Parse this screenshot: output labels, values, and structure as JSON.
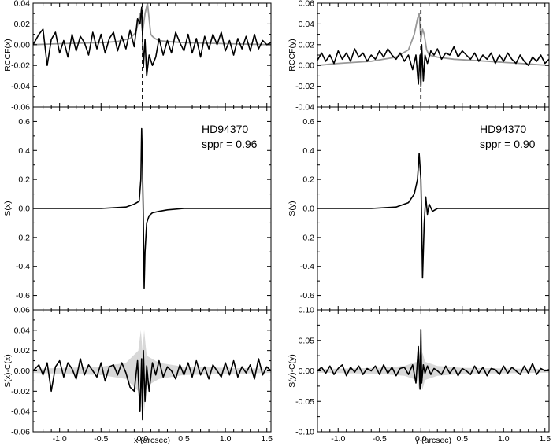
{
  "chart_data": [
    {
      "type": "line",
      "panel": "left-top",
      "ylabel": "RCCF(x)",
      "xlim": [
        -1.32,
        1.55
      ],
      "ylim": [
        -0.06,
        0.04
      ],
      "yticks": [
        "0.04",
        "0.02",
        "0.00",
        "-0.02",
        "-0.04",
        "-0.06"
      ],
      "ytick_values": [
        0.04,
        0.02,
        0.0,
        -0.02,
        -0.04,
        -0.06
      ],
      "vline_x": 0.0,
      "series": [
        {
          "color": "#000000",
          "x": [
            -1.32,
            -1.25,
            -1.2,
            -1.15,
            -1.1,
            -1.05,
            -1.0,
            -0.95,
            -0.9,
            -0.85,
            -0.8,
            -0.75,
            -0.7,
            -0.65,
            -0.6,
            -0.55,
            -0.5,
            -0.45,
            -0.4,
            -0.35,
            -0.3,
            -0.25,
            -0.2,
            -0.15,
            -0.1,
            -0.06,
            -0.03,
            -0.01,
            0.0,
            0.01,
            0.03,
            0.05,
            0.08,
            0.12,
            0.16,
            0.2,
            0.25,
            0.3,
            0.35,
            0.4,
            0.45,
            0.5,
            0.55,
            0.6,
            0.65,
            0.7,
            0.75,
            0.8,
            0.85,
            0.9,
            0.95,
            1.0,
            1.05,
            1.1,
            1.15,
            1.2,
            1.25,
            1.3,
            1.35,
            1.4,
            1.45,
            1.5,
            1.55
          ],
          "y": [
            0.0,
            0.01,
            0.015,
            -0.02,
            0.005,
            0.012,
            -0.008,
            0.004,
            -0.012,
            0.01,
            -0.006,
            0.008,
            0.002,
            -0.01,
            0.012,
            -0.004,
            0.01,
            -0.008,
            0.006,
            0.012,
            -0.006,
            0.008,
            -0.004,
            0.014,
            -0.002,
            0.025,
            0.02,
            0.036,
            0.01,
            -0.022,
            0.005,
            -0.03,
            -0.01,
            -0.02,
            -0.012,
            0.006,
            -0.01,
            0.004,
            -0.008,
            0.012,
            0.002,
            -0.006,
            0.01,
            -0.008,
            0.006,
            -0.012,
            0.008,
            -0.004,
            0.01,
            0.0,
            0.012,
            -0.006,
            0.004,
            -0.01,
            0.006,
            -0.004,
            0.008,
            -0.006,
            0.01,
            -0.004,
            0.004,
            0.0,
            0.002
          ]
        },
        {
          "color": "#999999",
          "x": [
            -1.32,
            -1.0,
            -0.5,
            -0.3,
            -0.15,
            -0.08,
            -0.05,
            -0.03,
            -0.01,
            0.0,
            0.03,
            0.06,
            0.08,
            0.1,
            0.12,
            0.15,
            0.2,
            0.3,
            0.5,
            1.0,
            1.55
          ],
          "y": [
            0.0,
            0.001,
            0.002,
            0.003,
            0.006,
            0.012,
            0.022,
            0.03,
            0.02,
            0.012,
            0.03,
            0.04,
            0.025,
            0.01,
            0.008,
            0.006,
            0.004,
            0.003,
            0.002,
            0.001,
            0.0
          ]
        }
      ]
    },
    {
      "type": "line",
      "panel": "left-middle",
      "ylabel": "S(x)",
      "xlim": [
        -1.32,
        1.55
      ],
      "ylim": [
        -0.7,
        0.7
      ],
      "yticks": [
        "0.6",
        "0.4",
        "0.2",
        "0.0",
        "-0.2",
        "-0.4",
        "-0.6"
      ],
      "ytick_values": [
        0.6,
        0.4,
        0.2,
        0.0,
        -0.2,
        -0.4,
        -0.6
      ],
      "annotations": [
        "HD94370",
        "sppr = 0.96"
      ],
      "series": [
        {
          "color": "#000000",
          "x": [
            -1.32,
            -1.0,
            -0.5,
            -0.2,
            -0.1,
            -0.04,
            -0.02,
            -0.01,
            0.0,
            0.01,
            0.02,
            0.03,
            0.05,
            0.08,
            0.12,
            0.2,
            0.3,
            0.5,
            1.0,
            1.55
          ],
          "y": [
            0.0,
            0.0,
            0.0,
            0.01,
            0.03,
            0.05,
            0.2,
            0.55,
            0.3,
            -0.1,
            -0.55,
            -0.3,
            -0.1,
            -0.05,
            -0.03,
            -0.02,
            -0.01,
            0.0,
            0.0,
            0.0
          ]
        }
      ]
    },
    {
      "type": "line",
      "panel": "left-bottom",
      "ylabel": "S(x)-C(x)",
      "xlabel": "x (arcsec)",
      "xlim": [
        -1.32,
        1.55
      ],
      "ylim": [
        -0.06,
        0.06
      ],
      "yticks": [
        "0.06",
        "0.04",
        "0.02",
        "0.00",
        "-0.02",
        "-0.04",
        "-0.06"
      ],
      "ytick_values": [
        0.06,
        0.04,
        0.02,
        0.0,
        -0.02,
        -0.04,
        -0.06
      ],
      "xticks": [
        "-1.0",
        "-0.5",
        "0.0",
        "0.5",
        "1.0",
        "1.5"
      ],
      "xtick_values": [
        -1.0,
        -0.5,
        0.0,
        0.5,
        1.0,
        1.5
      ],
      "band": {
        "x": [
          -1.32,
          -0.5,
          -0.2,
          -0.05,
          -0.02,
          0.0,
          0.02,
          0.05,
          0.2,
          0.5,
          1.55
        ],
        "upper": [
          0.002,
          0.004,
          0.008,
          0.02,
          0.04,
          0.02,
          0.04,
          0.015,
          0.008,
          0.004,
          0.002
        ],
        "lower": [
          -0.002,
          -0.004,
          -0.008,
          -0.02,
          -0.04,
          -0.02,
          -0.04,
          -0.015,
          -0.008,
          -0.004,
          -0.002
        ]
      },
      "series": [
        {
          "color": "#000000",
          "x": [
            -1.32,
            -1.25,
            -1.2,
            -1.15,
            -1.1,
            -1.05,
            -1.0,
            -0.95,
            -0.9,
            -0.85,
            -0.8,
            -0.75,
            -0.7,
            -0.65,
            -0.6,
            -0.55,
            -0.5,
            -0.45,
            -0.4,
            -0.35,
            -0.3,
            -0.25,
            -0.2,
            -0.15,
            -0.1,
            -0.06,
            -0.03,
            -0.01,
            0.0,
            0.01,
            0.03,
            0.05,
            0.08,
            0.12,
            0.16,
            0.2,
            0.25,
            0.3,
            0.35,
            0.4,
            0.45,
            0.5,
            0.55,
            0.6,
            0.65,
            0.7,
            0.75,
            0.8,
            0.85,
            0.9,
            0.95,
            1.0,
            1.05,
            1.1,
            1.15,
            1.2,
            1.25,
            1.3,
            1.35,
            1.4,
            1.45,
            1.5,
            1.55
          ],
          "y": [
            0.0,
            0.006,
            -0.004,
            0.008,
            -0.02,
            0.004,
            0.01,
            -0.006,
            0.008,
            0.002,
            -0.008,
            0.012,
            -0.004,
            0.006,
            0.0,
            -0.006,
            0.008,
            -0.01,
            0.004,
            0.006,
            -0.004,
            0.008,
            -0.002,
            -0.016,
            -0.02,
            0.01,
            -0.04,
            0.012,
            -0.048,
            0.02,
            -0.03,
            0.005,
            -0.02,
            0.008,
            -0.004,
            0.01,
            -0.006,
            0.004,
            0.0,
            -0.008,
            0.006,
            -0.004,
            0.008,
            -0.006,
            0.01,
            -0.004,
            0.004,
            -0.008,
            0.006,
            0.0,
            -0.006,
            0.008,
            -0.004,
            0.01,
            -0.006,
            0.004,
            -0.002,
            0.006,
            -0.008,
            0.012,
            -0.004,
            0.004,
            0.0
          ]
        }
      ]
    },
    {
      "type": "line",
      "panel": "right-top",
      "ylabel": "RCCF(y)",
      "xlim": [
        -1.25,
        1.55
      ],
      "ylim": [
        -0.04,
        0.06
      ],
      "yticks": [
        "0.06",
        "0.04",
        "0.02",
        "0.00",
        "-0.02",
        "-0.04"
      ],
      "ytick_values": [
        0.06,
        0.04,
        0.02,
        0.0,
        -0.02,
        -0.04
      ],
      "vline_x": 0.0,
      "series": [
        {
          "color": "#000000",
          "x": [
            -1.25,
            -1.2,
            -1.15,
            -1.1,
            -1.05,
            -1.0,
            -0.95,
            -0.9,
            -0.85,
            -0.8,
            -0.75,
            -0.7,
            -0.65,
            -0.6,
            -0.55,
            -0.5,
            -0.45,
            -0.4,
            -0.35,
            -0.3,
            -0.25,
            -0.2,
            -0.15,
            -0.1,
            -0.06,
            -0.03,
            -0.01,
            0.0,
            0.01,
            0.03,
            0.05,
            0.08,
            0.12,
            0.16,
            0.2,
            0.25,
            0.3,
            0.35,
            0.4,
            0.45,
            0.5,
            0.55,
            0.6,
            0.65,
            0.7,
            0.75,
            0.8,
            0.85,
            0.9,
            0.95,
            1.0,
            1.05,
            1.1,
            1.15,
            1.2,
            1.25,
            1.3,
            1.35,
            1.4,
            1.45,
            1.5,
            1.55
          ],
          "y": [
            0.005,
            0.012,
            0.004,
            0.01,
            0.002,
            0.014,
            0.006,
            0.012,
            0.004,
            0.016,
            0.008,
            0.012,
            0.004,
            0.01,
            0.006,
            0.014,
            0.008,
            0.016,
            0.01,
            0.006,
            0.012,
            0.004,
            0.01,
            -0.004,
            0.01,
            -0.018,
            0.01,
            -0.02,
            0.02,
            -0.015,
            0.01,
            0.002,
            0.014,
            0.01,
            0.016,
            0.006,
            0.012,
            0.01,
            0.018,
            0.008,
            0.014,
            0.01,
            0.006,
            0.012,
            0.004,
            0.01,
            0.006,
            0.012,
            0.002,
            0.01,
            0.004,
            0.012,
            0.006,
            0.002,
            0.01,
            0.004,
            0.0,
            0.008,
            0.004,
            0.01,
            0.002,
            0.006
          ]
        },
        {
          "color": "#999999",
          "x": [
            -1.25,
            -1.0,
            -0.6,
            -0.3,
            -0.15,
            -0.08,
            -0.04,
            -0.02,
            0.0,
            0.02,
            0.04,
            0.07,
            0.1,
            0.2,
            0.4,
            0.8,
            1.2,
            1.55
          ],
          "y": [
            0.0,
            0.002,
            0.004,
            0.008,
            0.015,
            0.03,
            0.045,
            0.05,
            0.025,
            0.035,
            0.03,
            0.015,
            0.01,
            0.008,
            0.006,
            0.004,
            0.002,
            0.0
          ]
        }
      ]
    },
    {
      "type": "line",
      "panel": "right-middle",
      "ylabel": "S(y)",
      "xlim": [
        -1.25,
        1.55
      ],
      "ylim": [
        -0.7,
        0.7
      ],
      "yticks": [
        "0.6",
        "0.4",
        "0.2",
        "0.0",
        "-0.2",
        "-0.4",
        "-0.6"
      ],
      "ytick_values": [
        0.6,
        0.4,
        0.2,
        0.0,
        -0.2,
        -0.4,
        -0.6
      ],
      "annotations": [
        "HD94370",
        "sppr = 0.90"
      ],
      "series": [
        {
          "color": "#000000",
          "x": [
            -1.25,
            -0.6,
            -0.3,
            -0.15,
            -0.08,
            -0.04,
            -0.02,
            0.0,
            0.01,
            0.02,
            0.04,
            0.06,
            0.08,
            0.1,
            0.14,
            0.2,
            0.4,
            0.8,
            1.55
          ],
          "y": [
            0.0,
            0.0,
            0.01,
            0.04,
            0.1,
            0.2,
            0.38,
            0.2,
            -0.1,
            -0.48,
            -0.1,
            0.08,
            -0.04,
            0.03,
            -0.02,
            0.0,
            0.0,
            0.0,
            0.0
          ]
        }
      ]
    },
    {
      "type": "line",
      "panel": "right-bottom",
      "ylabel": "S(y)-C(y)",
      "xlabel": "y (arcsec)",
      "xlim": [
        -1.25,
        1.55
      ],
      "ylim": [
        -0.1,
        0.1
      ],
      "yticks": [
        "0.10",
        "0.05",
        "0.00",
        "-0.05",
        "-0.10"
      ],
      "ytick_values": [
        0.1,
        0.05,
        0.0,
        -0.05,
        -0.1
      ],
      "xticks": [
        "-1.0",
        "-0.5",
        "0.0",
        "0.5",
        "1.0",
        "1.5"
      ],
      "xtick_values": [
        -1.0,
        -0.5,
        0.0,
        0.5,
        1.0,
        1.5
      ],
      "band": {
        "x": [
          -1.25,
          -0.5,
          -0.2,
          -0.05,
          -0.02,
          0.0,
          0.02,
          0.05,
          0.2,
          0.5,
          1.55
        ],
        "upper": [
          0.003,
          0.005,
          0.008,
          0.015,
          0.03,
          0.02,
          0.03,
          0.015,
          0.008,
          0.005,
          0.003
        ],
        "lower": [
          -0.003,
          -0.005,
          -0.008,
          -0.015,
          -0.03,
          -0.02,
          -0.03,
          -0.015,
          -0.008,
          -0.005,
          -0.003
        ]
      },
      "series": [
        {
          "color": "#000000",
          "x": [
            -1.25,
            -1.2,
            -1.15,
            -1.1,
            -1.05,
            -1.0,
            -0.95,
            -0.9,
            -0.85,
            -0.8,
            -0.75,
            -0.7,
            -0.65,
            -0.6,
            -0.55,
            -0.5,
            -0.45,
            -0.4,
            -0.35,
            -0.3,
            -0.25,
            -0.2,
            -0.15,
            -0.1,
            -0.06,
            -0.03,
            -0.01,
            0.0,
            0.01,
            0.03,
            0.05,
            0.08,
            0.12,
            0.16,
            0.2,
            0.25,
            0.3,
            0.35,
            0.4,
            0.45,
            0.5,
            0.55,
            0.6,
            0.65,
            0.7,
            0.75,
            0.8,
            0.85,
            0.9,
            0.95,
            1.0,
            1.05,
            1.1,
            1.15,
            1.2,
            1.25,
            1.3,
            1.35,
            1.4,
            1.45,
            1.5,
            1.55
          ],
          "y": [
            0.0,
            0.006,
            -0.004,
            0.008,
            -0.006,
            0.004,
            0.01,
            -0.008,
            0.006,
            -0.002,
            0.008,
            -0.006,
            0.004,
            0.0,
            0.008,
            -0.006,
            0.01,
            -0.004,
            0.006,
            -0.008,
            0.004,
            0.006,
            -0.006,
            0.01,
            -0.02,
            0.04,
            -0.03,
            0.068,
            -0.02,
            0.01,
            -0.004,
            0.008,
            -0.006,
            0.004,
            0.0,
            -0.006,
            0.008,
            -0.004,
            0.006,
            -0.008,
            0.004,
            0.0,
            -0.006,
            0.008,
            -0.004,
            0.006,
            -0.008,
            0.004,
            0.002,
            -0.006,
            0.008,
            -0.004,
            0.006,
            0.0,
            -0.006,
            0.008,
            -0.004,
            0.012,
            -0.006,
            0.004,
            0.0,
            0.002
          ]
        }
      ]
    }
  ]
}
